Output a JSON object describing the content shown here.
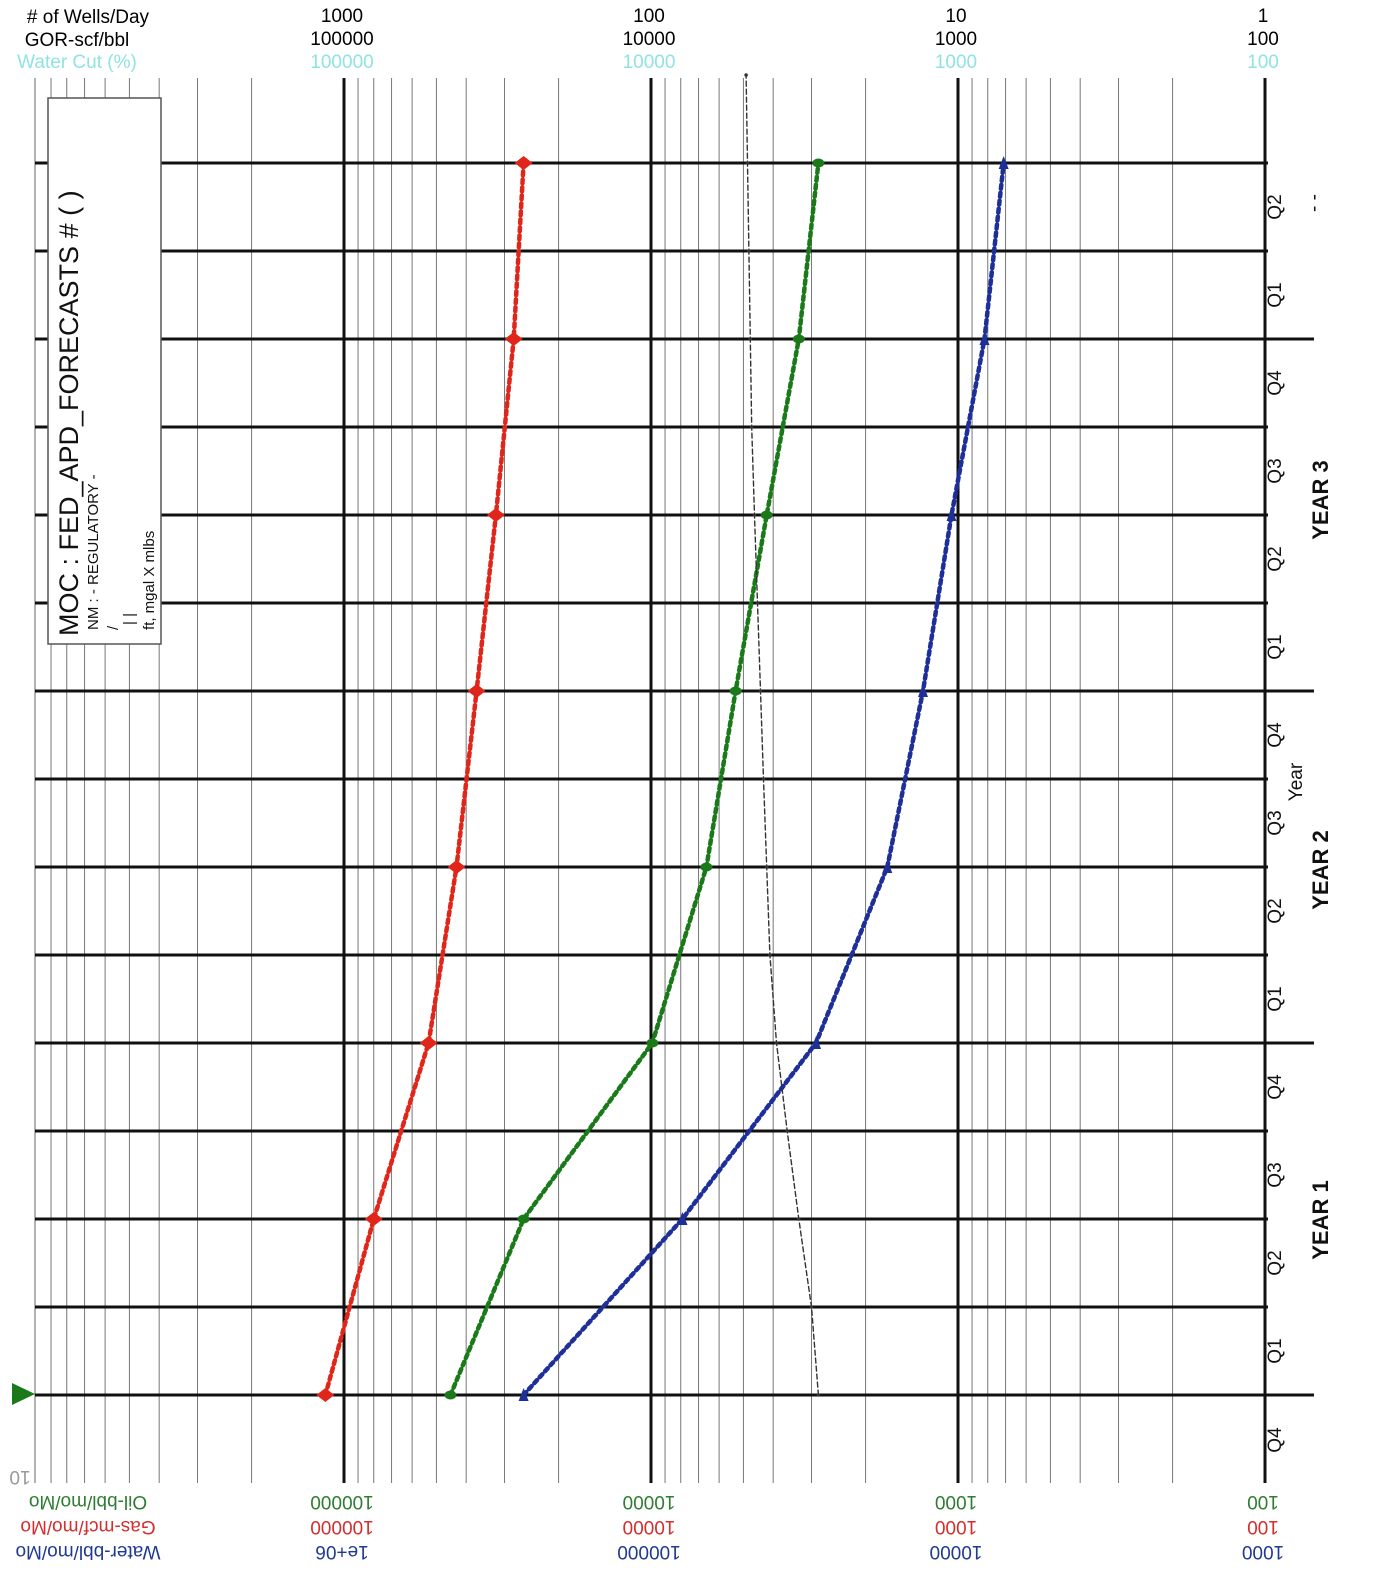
{
  "chart_data": {
    "type": "line",
    "orientation": "rotated-90-clockwise",
    "scale": "log",
    "top_axes": [
      {
        "name": "# of Wells/Day",
        "ticks": [
          "1000",
          "100",
          "10",
          "1"
        ],
        "color": "#000000"
      },
      {
        "name": "GOR-scf/bbl",
        "ticks": [
          "100000",
          "10000",
          "1000",
          "100"
        ],
        "color": "#000000"
      },
      {
        "name": "Water Cut (%)",
        "ticks": [
          "100000",
          "10000",
          "1000",
          "100"
        ],
        "color": "#8fe3e3"
      }
    ],
    "bottom_axes": [
      {
        "name": "Oil-bbl/mo/Mo",
        "ticks": [
          "100000",
          "10000",
          "1000",
          "100"
        ],
        "color": "#2e7d32"
      },
      {
        "name": "Gas-mcf/mo/Mo",
        "ticks": [
          "100000",
          "10000",
          "1000",
          "100"
        ],
        "color": "#d32f2f"
      },
      {
        "name": "Water-bbl/mo/Mo",
        "ticks": [
          "1e+06",
          "100000",
          "10000",
          "1000"
        ],
        "color": "#1f3a93"
      }
    ],
    "time_axis": {
      "label": "Year",
      "quarters": [
        "Q4",
        "Q1",
        "Q2",
        "Q3",
        "Q4",
        "Q1",
        "Q2",
        "Q3",
        "Q4",
        "Q1",
        "Q2",
        "Q3",
        "Q4",
        "Q1",
        "Q2"
      ],
      "years": [
        "YEAR 1",
        "YEAR 2",
        "YEAR 3"
      ],
      "trailing_mark": "- -"
    },
    "series": [
      {
        "name": "Gas-mcf/mo/Mo",
        "color": "#e0261b",
        "marker": "diamond",
        "unit_axis": "Gas-mcf/mo/Mo",
        "t": [
          0,
          2,
          4,
          6,
          8,
          10,
          12,
          14
        ],
        "values": [
          115000,
          80000,
          53000,
          43000,
          37000,
          32000,
          28000,
          26000
        ]
      },
      {
        "name": "Oil-bbl/mo/Mo",
        "color": "#1a7a1a",
        "marker": "circle",
        "unit_axis": "Oil-bbl/mo/Mo",
        "t": [
          0,
          2,
          4,
          6,
          8,
          10,
          12,
          14
        ],
        "values": [
          45000,
          26000,
          9900,
          6600,
          5300,
          4200,
          3300,
          2850
        ]
      },
      {
        "name": "Water-bbl/mo/Mo",
        "color": "#1f2f9a",
        "marker": "triangle",
        "unit_axis": "Water-bbl/mo/Mo",
        "t": [
          0,
          2,
          4,
          6,
          8,
          10,
          12,
          14
        ],
        "values": [
          260000,
          79000,
          29000,
          17000,
          13000,
          10500,
          8200,
          7100
        ]
      },
      {
        "name": "GOR-scf/bbl",
        "color": "#333333",
        "marker": "small",
        "unit_axis": "GOR-scf/bbl",
        "t": [
          0,
          1,
          2,
          3,
          4,
          5,
          6,
          7,
          8,
          9,
          10,
          11,
          12,
          13,
          14,
          15
        ],
        "values": [
          2850,
          3000,
          3300,
          3600,
          3900,
          4100,
          4200,
          4300,
          4400,
          4500,
          4600,
          4700,
          4750,
          4800,
          4850,
          4900
        ]
      }
    ]
  },
  "legend": {
    "title": "MOC : FED_APD_FORECASTS # ( )",
    "line1": "NM : - REGULATORY -",
    "line2": "/",
    "line3": "| |",
    "line4": "ft, mgal X mlbs"
  },
  "small_marker": "10",
  "colors": {
    "gas": "#e0261b",
    "oil": "#1a7a1a",
    "water": "#1f2f9a",
    "gor": "#333333",
    "watercut": "#8fe3e3",
    "start_marker": "#1a7a1a"
  }
}
